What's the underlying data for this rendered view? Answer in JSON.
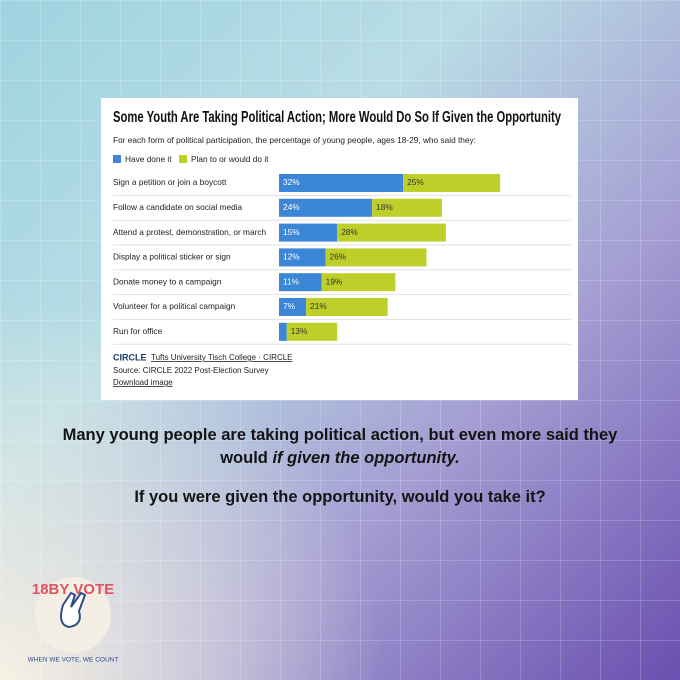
{
  "chart_data": {
    "type": "stacked-bar-horizontal",
    "title": "Some Youth Are Taking Political Action; More Would Do So If Given the Opportunity",
    "subtitle": "For each form of political participation, the percentage of young people, ages 18-29, who said they:",
    "categories": [
      "Sign a petition or join a boycott",
      "Follow a candidate on social media",
      "Attend a protest, demonstration, or march",
      "Display a political sticker or sign",
      "Donate money to a campaign",
      "Volunteer for a political campaign",
      "Run for office"
    ],
    "series": [
      {
        "name": "Have done it",
        "color": "#3b86d6",
        "values": [
          32,
          24,
          15,
          12,
          11,
          7,
          2
        ],
        "value_labels": [
          "32%",
          "24%",
          "15%",
          "12%",
          "11%",
          "7%",
          null
        ]
      },
      {
        "name": "Plan to or would do it",
        "color": "#bfcf2a",
        "values": [
          25,
          18,
          28,
          26,
          19,
          21,
          13
        ],
        "value_labels": [
          "25%",
          "18%",
          "28%",
          "26%",
          "19%",
          "21%",
          "13%"
        ]
      }
    ],
    "brand": "CIRCLE",
    "org": "Tufts University Tisch College · CIRCLE",
    "source": "Source: CIRCLE 2022 Post-Election Survey",
    "download": "Download image"
  },
  "caption": {
    "text": "Many young people are taking political action, but even more said they would",
    "emphasis": "if given the opportunity.",
    "question": "If you were given the opportunity, would you take it?"
  },
  "logo": {
    "name": "18BY VOTE",
    "motto": "WHEN WE VOTE, WE COUNT"
  }
}
